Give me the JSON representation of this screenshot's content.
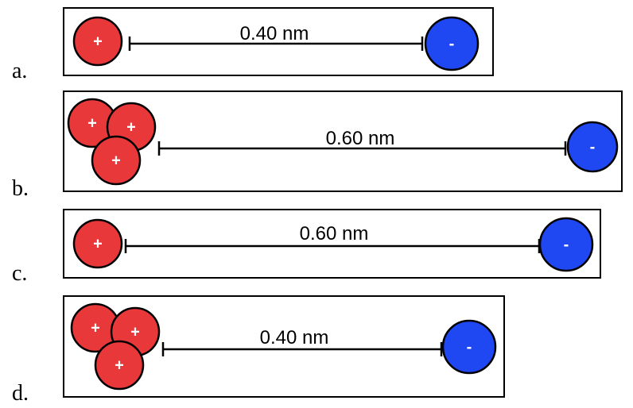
{
  "panels": [
    {
      "label": "a.",
      "distance": "0.40 nm",
      "cations": [
        "+"
      ],
      "anion": "-"
    },
    {
      "label": "b.",
      "distance": "0.60 nm",
      "cations": [
        "+",
        "+",
        "+"
      ],
      "anion": "-"
    },
    {
      "label": "c.",
      "distance": "0.60 nm",
      "cations": [
        "+"
      ],
      "anion": "-"
    },
    {
      "label": "d.",
      "distance": "0.40 nm",
      "cations": [
        "+",
        "+",
        "+"
      ],
      "anion": "-"
    }
  ]
}
